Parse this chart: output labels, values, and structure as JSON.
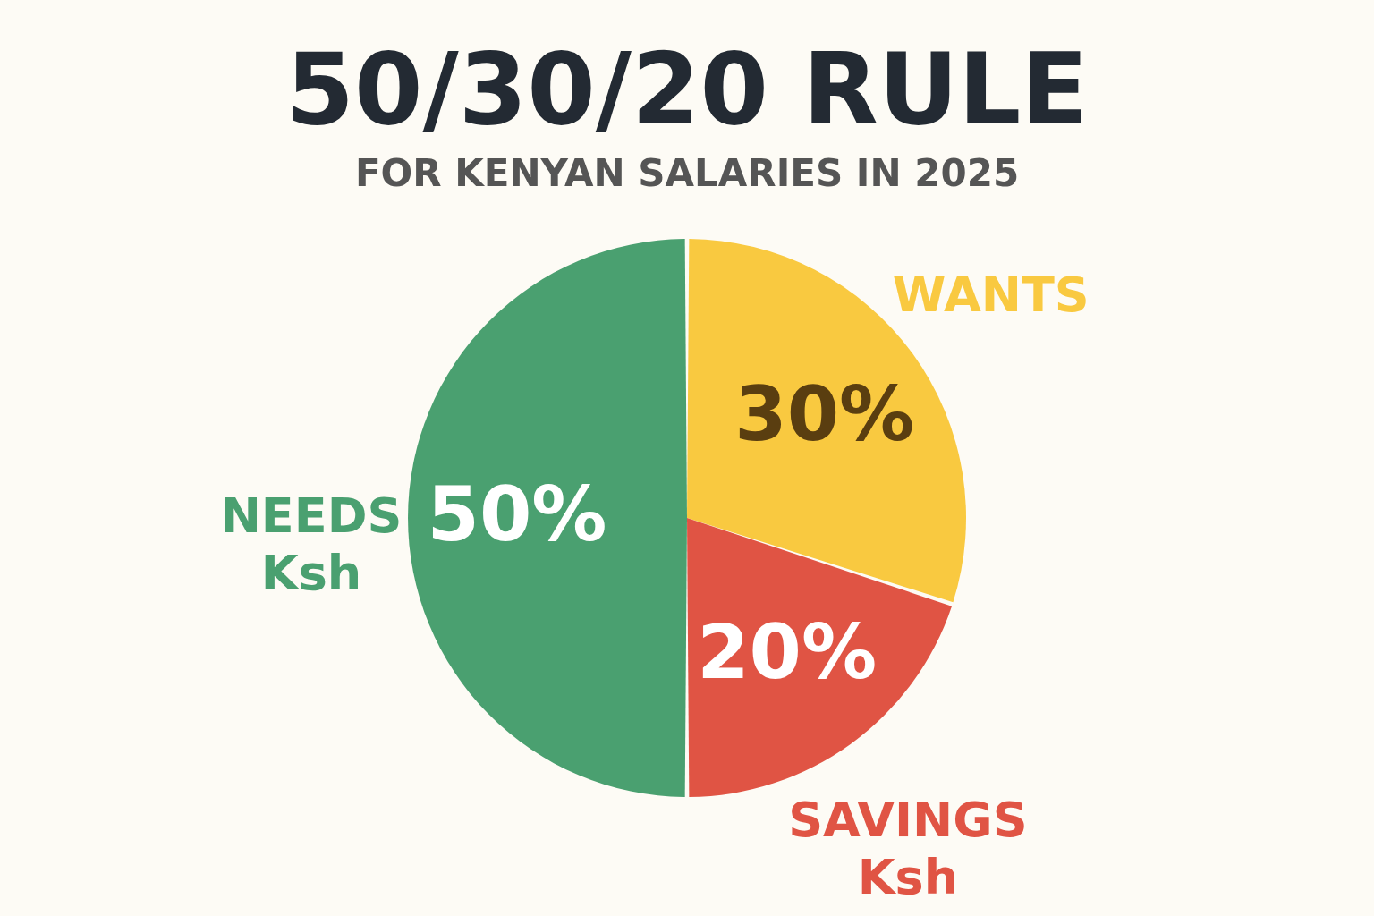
{
  "chart_data": {
    "type": "pie",
    "title": "50/30/20 RULE",
    "subtitle": "FOR KENYAN SALARIES IN 2025",
    "categories": [
      "WANTS",
      "SAVINGS",
      "NEEDS"
    ],
    "values": [
      30,
      20,
      50
    ],
    "value_labels": [
      "30%",
      "20%",
      "50%"
    ],
    "colors": [
      "#f9c940",
      "#e05444",
      "#4aa070"
    ],
    "annotations": [
      {
        "text": "Ksh",
        "x": "NEEDS"
      },
      {
        "text": "Ksh",
        "x": "SAVINGS"
      }
    ],
    "legend": false
  }
}
